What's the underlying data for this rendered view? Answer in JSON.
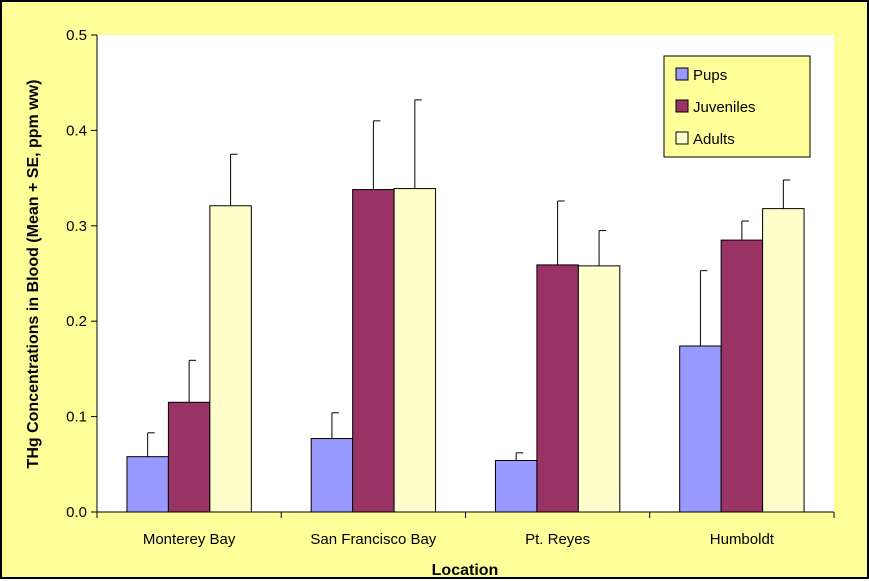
{
  "chart_data": {
    "type": "bar",
    "title": "",
    "xlabel": "Location",
    "ylabel": "THg Concentrations in Blood (Mean + SE, ppm ww)",
    "ylim": [
      0,
      0.5
    ],
    "yticks": [
      "0.0",
      "0.1",
      "0.2",
      "0.3",
      "0.4",
      "0.5"
    ],
    "categories": [
      "Monterey Bay",
      "San Francisco Bay",
      "Pt. Reyes",
      "Humboldt"
    ],
    "series": [
      {
        "name": "Pups",
        "color": "#9999ff",
        "values": [
          0.058,
          0.077,
          0.054,
          0.174
        ],
        "se": [
          0.025,
          0.027,
          0.008,
          0.079
        ]
      },
      {
        "name": "Juveniles",
        "color": "#993366",
        "values": [
          0.115,
          0.338,
          0.259,
          0.285
        ],
        "se": [
          0.044,
          0.072,
          0.067,
          0.02
        ]
      },
      {
        "name": "Adults",
        "color": "#ffffcc",
        "values": [
          0.321,
          0.339,
          0.258,
          0.318
        ],
        "se": [
          0.054,
          0.093,
          0.037,
          0.03
        ]
      }
    ],
    "legend_position": "top-right",
    "grid": false,
    "background_color": "#ffff99",
    "plot_background_color": "#ffffff"
  }
}
